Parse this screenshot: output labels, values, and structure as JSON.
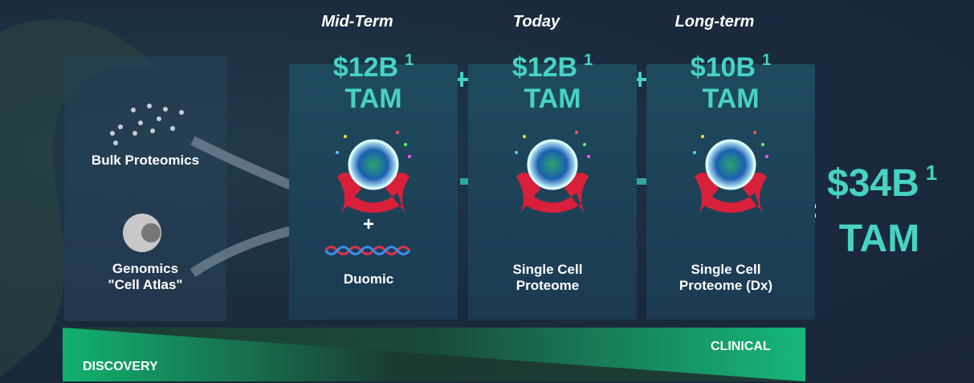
{
  "inputs": [
    {
      "label": "Bulk Proteomics"
    },
    {
      "label": "Genomics\n\"Cell Atlas\""
    }
  ],
  "columns": [
    {
      "heading": "Mid-Term",
      "amount": "$12B",
      "footnote": "1",
      "unit": "TAM",
      "extra": "+",
      "label": "Duomic"
    },
    {
      "heading": "Today",
      "amount": "$12B",
      "footnote": "1",
      "unit": "TAM",
      "label": "Single Cell\nProteome"
    },
    {
      "heading": "Long-term",
      "amount": "$10B",
      "footnote": "1",
      "unit": "TAM",
      "label": "Single Cell\nProteome (Dx)"
    }
  ],
  "operators": {
    "plus": "+",
    "equals": "="
  },
  "total": {
    "amount": "$34B",
    "footnote": "1",
    "unit": "TAM"
  },
  "spectrum": {
    "left": "DISCOVERY",
    "right": "CLINICAL"
  }
}
